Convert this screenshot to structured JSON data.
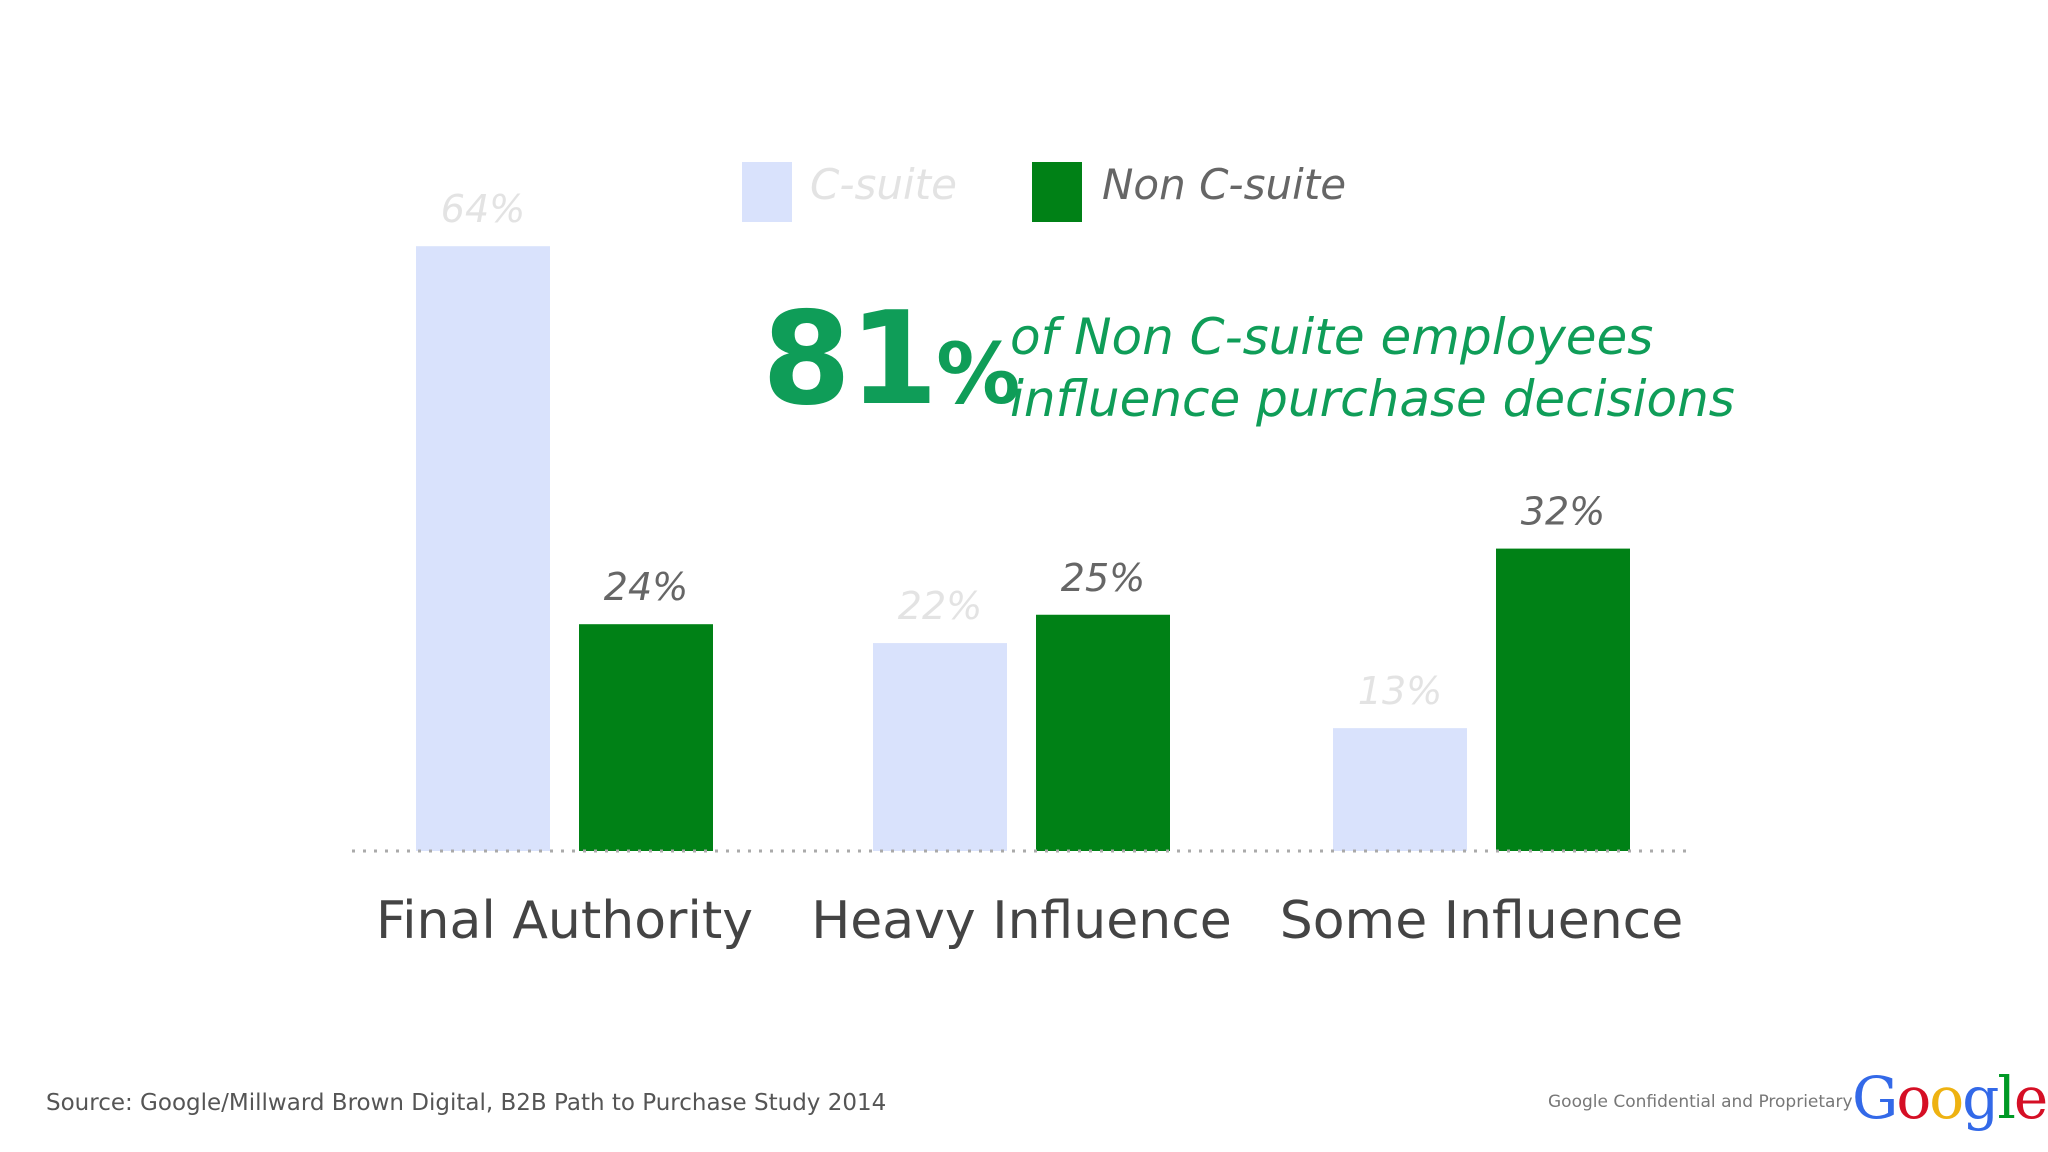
{
  "chart_data": {
    "type": "bar",
    "categories": [
      "Final Authority",
      "Heavy Influence",
      "Some Influence"
    ],
    "series": [
      {
        "name": "C-suite",
        "values": [
          64,
          22,
          13
        ],
        "labels": [
          "64%",
          "22%",
          "13%"
        ],
        "color": "#d9e2fc",
        "label_color": "#e3e3e3"
      },
      {
        "name": "Non C-suite",
        "values": [
          24,
          25,
          32
        ],
        "labels": [
          "24%",
          "25%",
          "32%"
        ],
        "color": "#008116",
        "label_color": "#666666"
      }
    ],
    "ylim": [
      0,
      70
    ],
    "grid": false,
    "legend": "top-center",
    "title": "",
    "xlabel": "",
    "ylabel": ""
  },
  "callout": {
    "number": "81",
    "percent": "%",
    "line1": "of Non C-suite employees",
    "line2": "influence purchase decisions",
    "color": "#0f9d58"
  },
  "footer": {
    "source": "Source: Google/Millward Brown Digital, B2B Path to Purchase Study 2014",
    "confidential": "Google Confidential and Proprietary",
    "logo_letters": [
      "G",
      "o",
      "o",
      "g",
      "l",
      "e"
    ],
    "logo_colors": [
      "#3369e8",
      "#d50f25",
      "#eeb211",
      "#3369e8",
      "#009925",
      "#d50f25"
    ]
  }
}
